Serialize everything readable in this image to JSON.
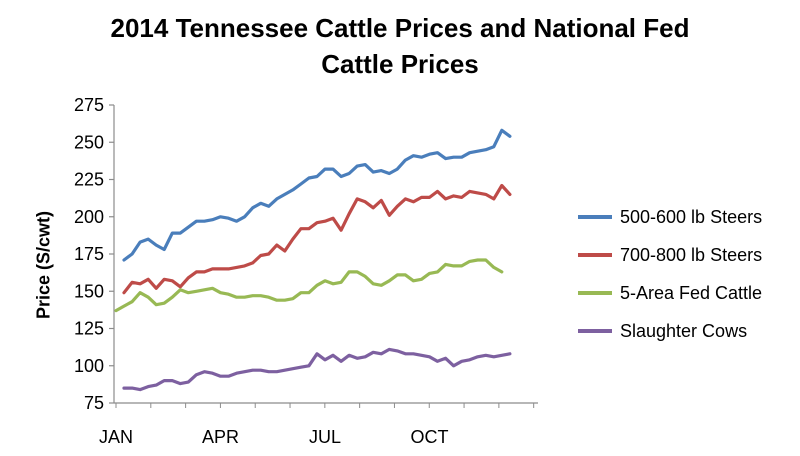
{
  "chart_data": {
    "type": "line",
    "title": "2014 Tennessee Cattle Prices and National Fed Cattle Prices",
    "title_lines": [
      "2014 Tennessee Cattle Prices and National Fed",
      "Cattle Prices"
    ],
    "ylabel": "Price (S/cwt)",
    "xlabel": "",
    "ylim": [
      75,
      275
    ],
    "yticks": [
      "75",
      "100",
      "125",
      "150",
      "175",
      "200",
      "225",
      "250",
      "275"
    ],
    "x_tick_labels": [
      {
        "label": "JAN",
        "week": 1
      },
      {
        "label": "APR",
        "week": 14
      },
      {
        "label": "JUL",
        "week": 27
      },
      {
        "label": "OCT",
        "week": 40
      }
    ],
    "xlim": [
      1,
      53
    ],
    "grid": false,
    "legend_position": "right",
    "series": [
      {
        "name": "500-600 lb Steers",
        "color": "#4a7ebb",
        "start_week": 2,
        "values": [
          171,
          175,
          183,
          185,
          181,
          178,
          189,
          189,
          193,
          197,
          197,
          198,
          200,
          199,
          197,
          200,
          206,
          209,
          207,
          212,
          215,
          218,
          222,
          226,
          227,
          232,
          232,
          227,
          229,
          234,
          235,
          230,
          231,
          229,
          232,
          238,
          241,
          240,
          242,
          243,
          239,
          240,
          240,
          243,
          244,
          245,
          247,
          258,
          254
        ]
      },
      {
        "name": "700-800 lb Steers",
        "color": "#be4b48",
        "start_week": 2,
        "values": [
          149,
          156,
          155,
          158,
          152,
          158,
          157,
          153,
          159,
          163,
          163,
          165,
          165,
          165,
          166,
          167,
          169,
          174,
          175,
          181,
          177,
          185,
          192,
          192,
          196,
          197,
          199,
          191,
          202,
          212,
          210,
          206,
          211,
          201,
          207,
          212,
          210,
          213,
          213,
          217,
          212,
          214,
          213,
          217,
          216,
          215,
          212,
          221,
          215
        ]
      },
      {
        "name": "5-Area Fed Cattle",
        "color": "#98b954",
        "start_week": 1,
        "values": [
          137,
          140,
          143,
          149,
          146,
          141,
          142,
          146,
          151,
          149,
          150,
          151,
          152,
          149,
          148,
          146,
          146,
          147,
          147,
          146,
          144,
          144,
          145,
          149,
          149,
          154,
          157,
          155,
          156,
          163,
          163,
          160,
          155,
          154,
          157,
          161,
          161,
          157,
          158,
          162,
          163,
          168,
          167,
          167,
          170,
          171,
          171,
          166,
          163
        ]
      },
      {
        "name": "Slaughter Cows",
        "color": "#7d60a0",
        "start_week": 2,
        "values": [
          85,
          85,
          84,
          86,
          87,
          90,
          90,
          88,
          89,
          94,
          96,
          95,
          93,
          93,
          95,
          96,
          97,
          97,
          96,
          96,
          97,
          98,
          99,
          100,
          108,
          104,
          107,
          103,
          107,
          105,
          106,
          109,
          108,
          111,
          110,
          108,
          108,
          107,
          106,
          103,
          105,
          100,
          103,
          104,
          106,
          107,
          106,
          107,
          108
        ]
      }
    ]
  }
}
